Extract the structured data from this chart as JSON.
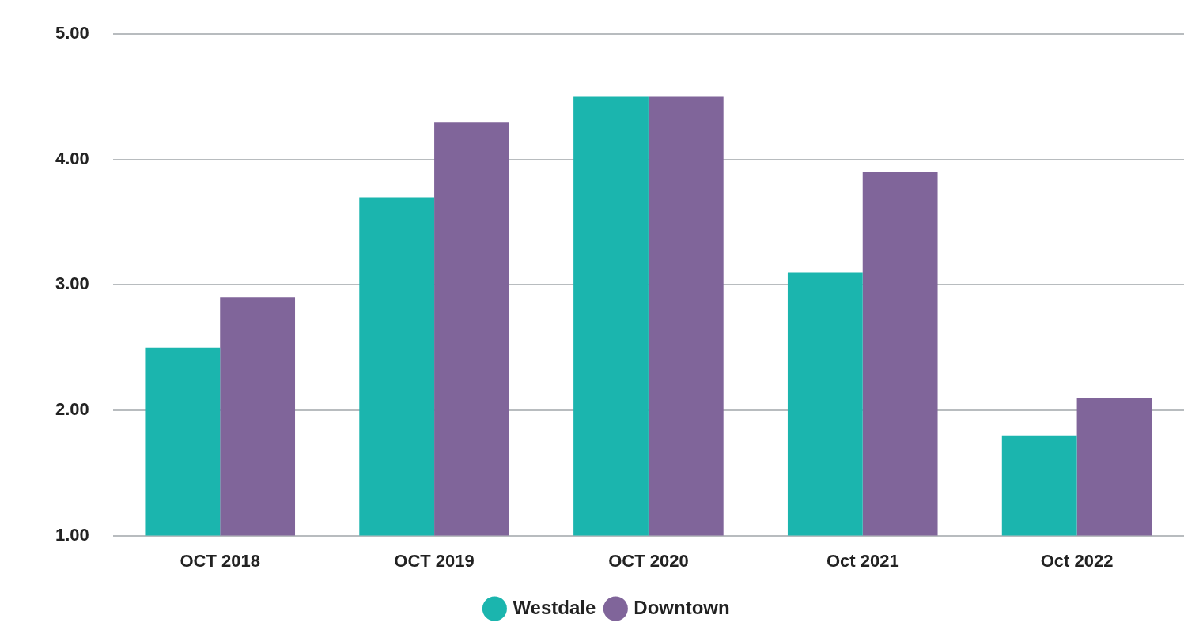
{
  "chart_data": {
    "type": "bar",
    "categories": [
      "OCT 2018",
      "OCT 2019",
      "OCT 2020",
      "Oct 2021",
      "Oct 2022"
    ],
    "series": [
      {
        "name": "Westdale",
        "color": "#1bb5ae",
        "values": [
          2.5,
          3.7,
          4.5,
          3.1,
          1.8
        ]
      },
      {
        "name": "Downtown",
        "color": "#80659a",
        "values": [
          2.9,
          4.3,
          4.5,
          3.9,
          2.1
        ]
      }
    ],
    "ylim": [
      1,
      5
    ],
    "yticks": [
      {
        "value": 1,
        "label": "1.00"
      },
      {
        "value": 2,
        "label": "2.00"
      },
      {
        "value": 3,
        "label": "3.00"
      },
      {
        "value": 4,
        "label": "4.00"
      },
      {
        "value": 5,
        "label": "5.00"
      }
    ],
    "grid": "y",
    "legend": "bottom"
  }
}
